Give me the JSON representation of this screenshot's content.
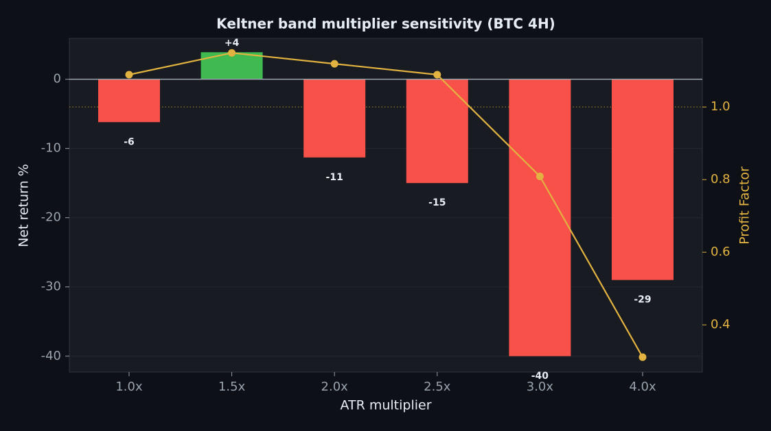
{
  "chart_data": {
    "type": "bar",
    "title": "Keltner band multiplier sensitivity (BTC 4H)",
    "xlabel": "ATR multiplier",
    "ylabel": "Net return %",
    "y2label": "Profit Factor",
    "categories": [
      "1.0x",
      "1.5x",
      "2.0x",
      "2.5x",
      "3.0x",
      "4.0x"
    ],
    "series": [
      {
        "type": "bar",
        "values": [
          -6.2,
          3.9,
          -11.3,
          -15.0,
          -40.0,
          -29.0
        ],
        "value_labels": [
          "-6",
          "+4",
          "-11",
          "-15",
          "-40",
          "-29"
        ],
        "colors": [
          "#f85149",
          "#3fb950",
          "#f85149",
          "#f85149",
          "#f85149",
          "#f85149"
        ]
      },
      {
        "type": "line",
        "axis": "y2",
        "color": "#e3b341",
        "values": [
          1.089,
          1.149,
          1.119,
          1.089,
          0.809,
          0.311
        ]
      }
    ],
    "ylim": [
      -42.3,
      5.9
    ],
    "yticks": [
      0,
      -10,
      -20,
      -30,
      -40
    ],
    "y2lim": [
      0.27,
      1.189
    ],
    "y2ticks": [
      {
        "value": 1,
        "label": "1.0"
      },
      0.8,
      0.6,
      0.4
    ],
    "y2_reference": 1
  }
}
